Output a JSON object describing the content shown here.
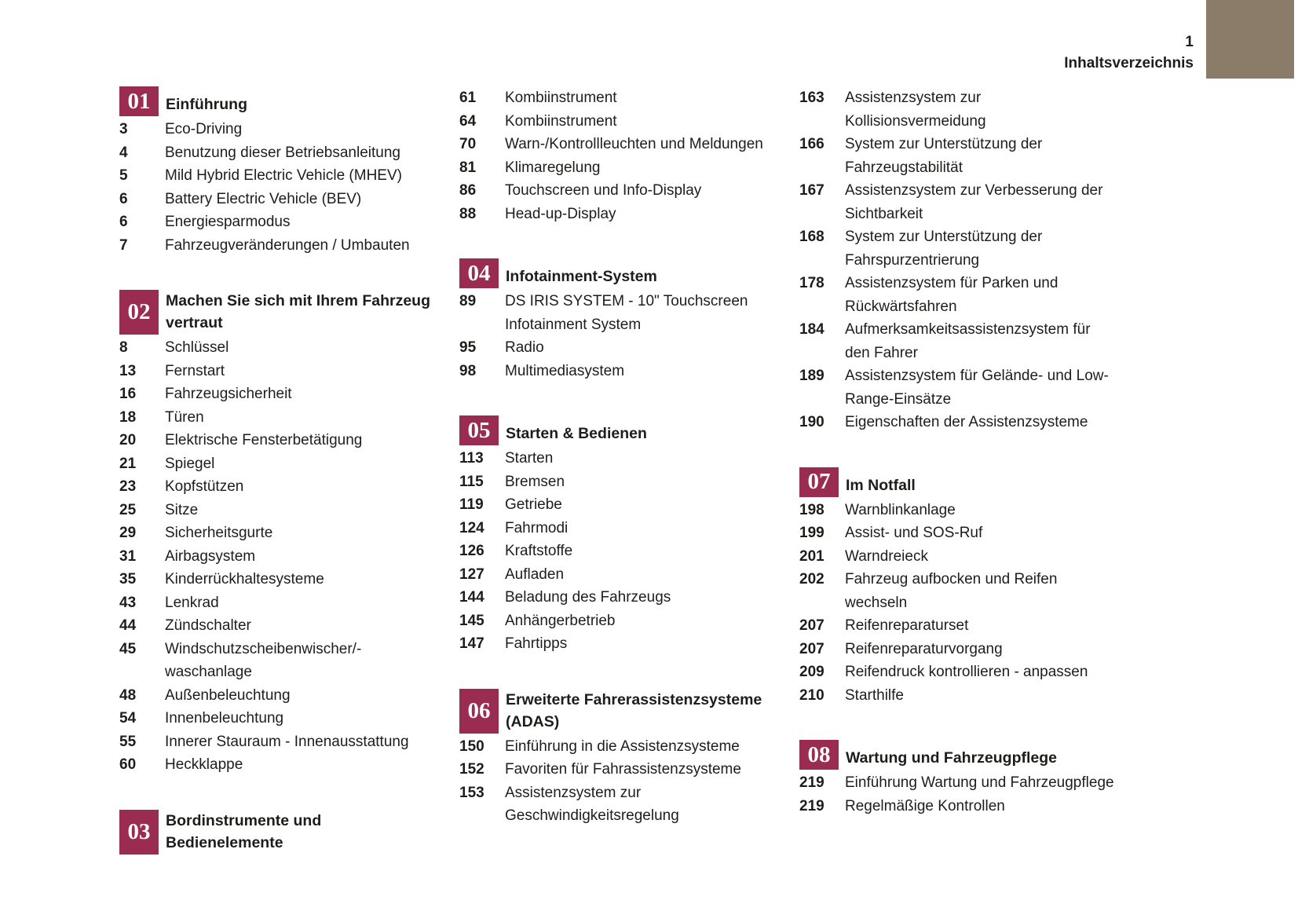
{
  "page": {
    "number": "1",
    "title": "Inhaltsverzeichnis"
  },
  "colors": {
    "accent": "#9a2c51",
    "corner": "#8a7c68",
    "text": "#1d1d1b"
  },
  "columns": [
    {
      "blocks": [
        {
          "chapter_number": "01",
          "chapter_title": "Einführung",
          "items": [
            {
              "page": "3",
              "title": "Eco-Driving"
            },
            {
              "page": "4",
              "title": "Benutzung dieser Betriebsanleitung"
            },
            {
              "page": "5",
              "title": "Mild Hybrid Electric Vehicle (MHEV)"
            },
            {
              "page": "6",
              "title": "Battery Electric Vehicle (BEV)"
            },
            {
              "page": "6",
              "title": "Energiesparmodus"
            },
            {
              "page": "7",
              "title": "Fahrzeugveränderungen / Umbauten"
            }
          ]
        },
        {
          "chapter_number": "02",
          "chapter_title": "Machen Sie sich mit Ihrem Fahrzeug\nvertraut",
          "items": [
            {
              "page": "8",
              "title": "Schlüssel"
            },
            {
              "page": "13",
              "title": "Fernstart"
            },
            {
              "page": "16",
              "title": "Fahrzeugsicherheit"
            },
            {
              "page": "18",
              "title": "Türen"
            },
            {
              "page": "20",
              "title": "Elektrische Fensterbetätigung"
            },
            {
              "page": "21",
              "title": "Spiegel"
            },
            {
              "page": "23",
              "title": "Kopfstützen"
            },
            {
              "page": "25",
              "title": "Sitze"
            },
            {
              "page": "29",
              "title": "Sicherheitsgurte"
            },
            {
              "page": "31",
              "title": "Airbagsystem"
            },
            {
              "page": "35",
              "title": "Kinderrückhaltesysteme"
            },
            {
              "page": "43",
              "title": "Lenkrad"
            },
            {
              "page": "44",
              "title": "Zündschalter"
            },
            {
              "page": "45",
              "title": "Windschutzscheibenwischer/-\nwaschanlage"
            },
            {
              "page": "48",
              "title": "Außenbeleuchtung"
            },
            {
              "page": "54",
              "title": "Innenbeleuchtung"
            },
            {
              "page": "55",
              "title": "Innerer Stauraum - Innenausstattung"
            },
            {
              "page": "60",
              "title": "Heckklappe"
            }
          ]
        },
        {
          "chapter_number": "03",
          "chapter_title": "Bordinstrumente und Bedienelemente",
          "items": []
        }
      ]
    },
    {
      "blocks": [
        {
          "items": [
            {
              "page": "61",
              "title": "Kombiinstrument"
            },
            {
              "page": "64",
              "title": "Kombiinstrument"
            },
            {
              "page": "70",
              "title": "Warn-/Kontrollleuchten und Meldungen"
            },
            {
              "page": "81",
              "title": "Klimaregelung"
            },
            {
              "page": "86",
              "title": "Touchscreen und Info-Display"
            },
            {
              "page": "88",
              "title": "Head-up-Display"
            }
          ]
        },
        {
          "chapter_number": "04",
          "chapter_title": "Infotainment-System",
          "items": [
            {
              "page": "89",
              "title": "DS IRIS SYSTEM - 10\" Touchscreen\nInfotainment System"
            },
            {
              "page": "95",
              "title": "Radio"
            },
            {
              "page": "98",
              "title": "Multimediasystem"
            }
          ]
        },
        {
          "chapter_number": "05",
          "chapter_title": "Starten & Bedienen",
          "items": [
            {
              "page": "113",
              "title": "Starten"
            },
            {
              "page": "115",
              "title": "Bremsen"
            },
            {
              "page": "119",
              "title": "Getriebe"
            },
            {
              "page": "124",
              "title": "Fahrmodi"
            },
            {
              "page": "126",
              "title": "Kraftstoffe"
            },
            {
              "page": "127",
              "title": "Aufladen"
            },
            {
              "page": "144",
              "title": "Beladung des Fahrzeugs"
            },
            {
              "page": "145",
              "title": "Anhängerbetrieb"
            },
            {
              "page": "147",
              "title": "Fahrtipps"
            }
          ]
        },
        {
          "chapter_number": "06",
          "chapter_title": "Erweiterte Fahrerassistenzsysteme\n(ADAS)",
          "items": [
            {
              "page": "150",
              "title": "Einführung in die Assistenzsysteme"
            },
            {
              "page": "152",
              "title": "Favoriten für Fahrassistenzsysteme"
            },
            {
              "page": "153",
              "title": "Assistenzsystem zur\nGeschwindigkeitsregelung"
            }
          ]
        }
      ]
    },
    {
      "blocks": [
        {
          "items": [
            {
              "page": "163",
              "title": "Assistenzsystem zur\nKollisionsvermeidung"
            },
            {
              "page": "166",
              "title": "System zur Unterstützung der\nFahrzeugstabilität"
            },
            {
              "page": "167",
              "title": "Assistenzsystem zur Verbesserung der\nSichtbarkeit"
            },
            {
              "page": "168",
              "title": "System zur Unterstützung der\nFahrspurzentrierung"
            },
            {
              "page": "178",
              "title": "Assistenzsystem für Parken und\nRückwärtsfahren"
            },
            {
              "page": "184",
              "title": "Aufmerksamkeitsassistenzsystem für\nden Fahrer"
            },
            {
              "page": "189",
              "title": "Assistenzsystem für Gelände- und Low-\nRange-Einsätze"
            },
            {
              "page": "190",
              "title": "Eigenschaften der Assistenzsysteme"
            }
          ]
        },
        {
          "chapter_number": "07",
          "chapter_title": "Im Notfall",
          "items": [
            {
              "page": "198",
              "title": "Warnblinkanlage"
            },
            {
              "page": "199",
              "title": "Assist- und SOS-Ruf"
            },
            {
              "page": "201",
              "title": "Warndreieck"
            },
            {
              "page": "202",
              "title": "Fahrzeug aufbocken und Reifen\nwechseln"
            },
            {
              "page": "207",
              "title": "Reifenreparaturset"
            },
            {
              "page": "207",
              "title": "Reifenreparaturvorgang"
            },
            {
              "page": "209",
              "title": "Reifendruck kontrollieren - anpassen"
            },
            {
              "page": "210",
              "title": "Starthilfe"
            }
          ]
        },
        {
          "chapter_number": "08",
          "chapter_title": "Wartung und Fahrzeugpflege",
          "items": [
            {
              "page": "219",
              "title": "Einführung Wartung und Fahrzeugpflege"
            },
            {
              "page": "219",
              "title": "Regelmäßige Kontrollen"
            }
          ]
        }
      ]
    }
  ]
}
